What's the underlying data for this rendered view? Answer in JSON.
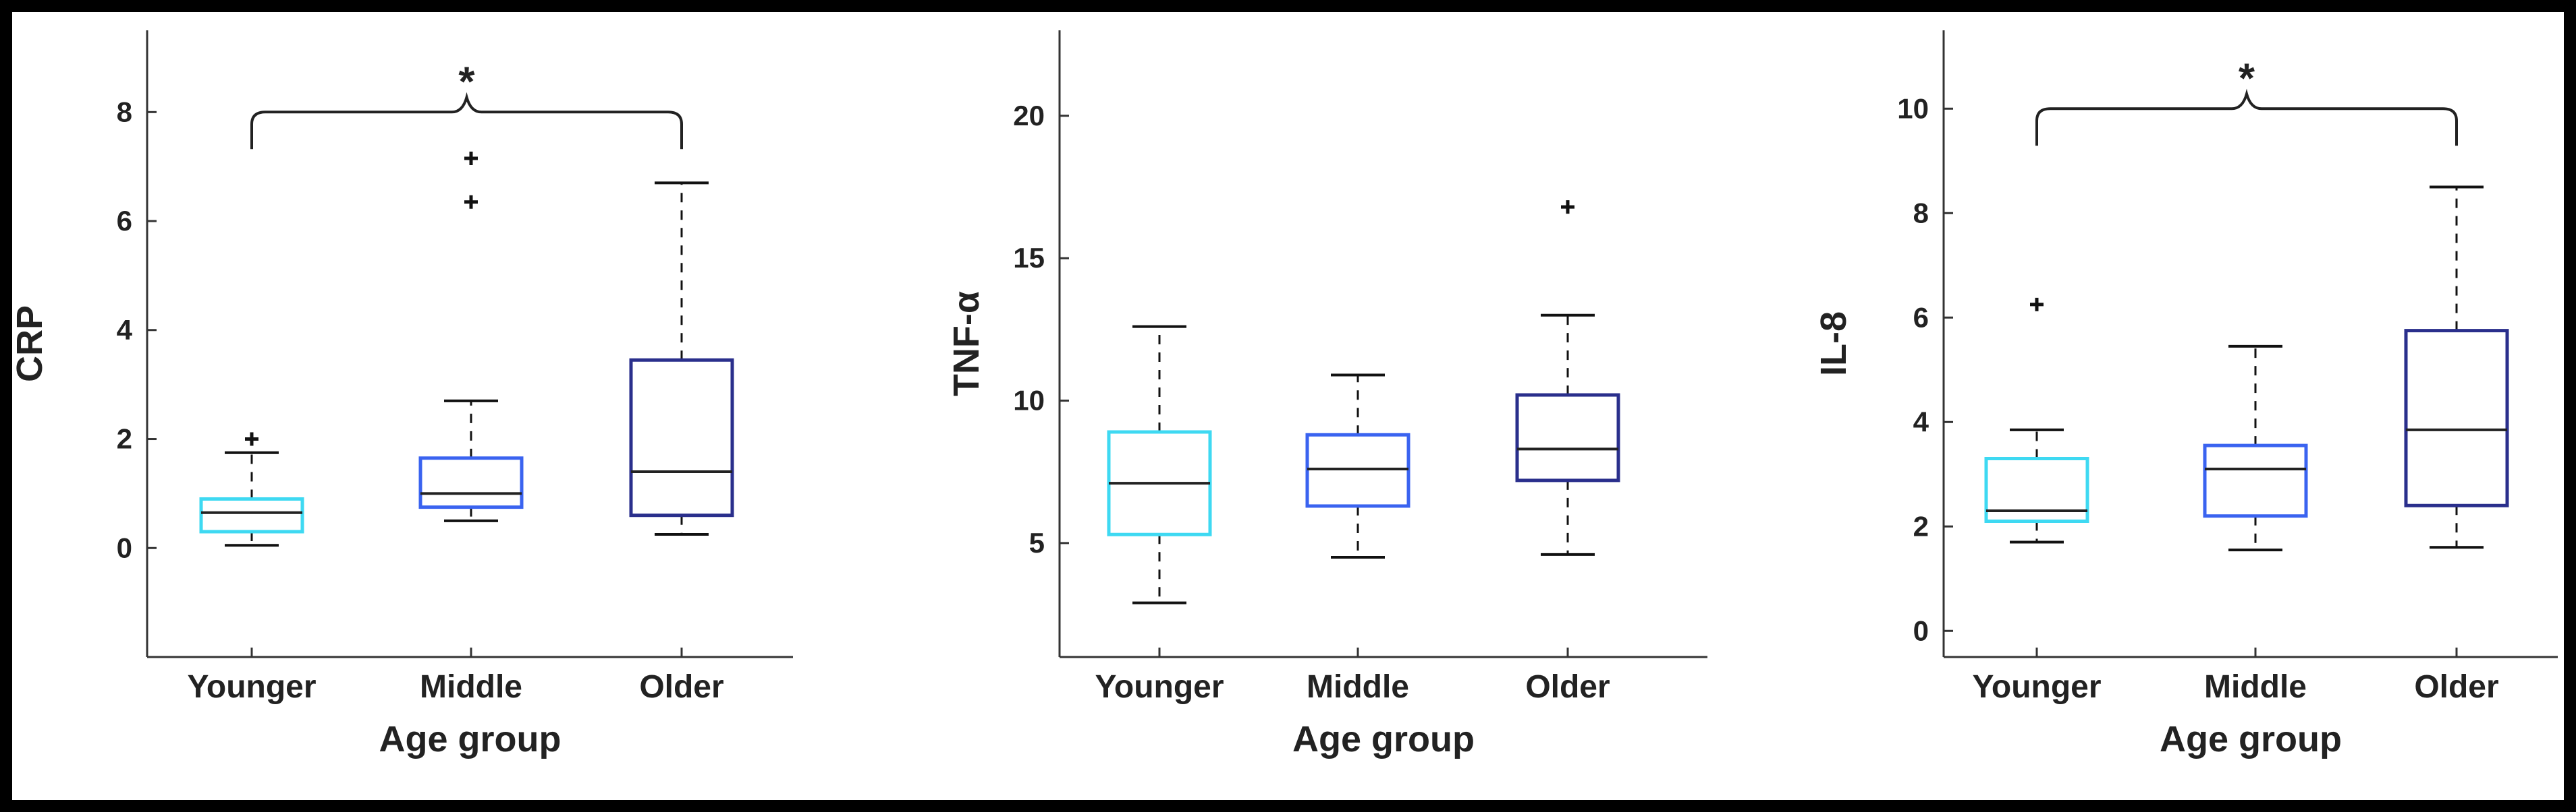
{
  "chart_data": [
    {
      "type": "box",
      "ylabel": "CRP",
      "xlabel": "Age group",
      "ylim": [
        -2,
        9.5
      ],
      "yticks": [
        0,
        2,
        4,
        6,
        8
      ],
      "grid": false,
      "categories": [
        "Younger",
        "Middle",
        "Older"
      ],
      "box_colors": [
        "#3ED9F2",
        "#3A63F0",
        "#2A2F8C"
      ],
      "boxes": [
        {
          "category": "Younger",
          "whisker_low": 0.05,
          "q1": 0.3,
          "median": 0.65,
          "q3": 0.9,
          "whisker_high": 1.75,
          "outliers": [
            2.0
          ]
        },
        {
          "category": "Middle",
          "whisker_low": 0.5,
          "q1": 0.75,
          "median": 1.0,
          "q3": 1.65,
          "whisker_high": 2.7,
          "outliers": [
            6.35,
            7.15
          ]
        },
        {
          "category": "Older",
          "whisker_low": 0.25,
          "q1": 0.6,
          "median": 1.4,
          "q3": 3.45,
          "whisker_high": 6.7,
          "outliers": []
        }
      ],
      "significance": {
        "from": "Younger",
        "to": "Older",
        "label": "*",
        "y": 8.0
      }
    },
    {
      "type": "box",
      "ylabel": "TNF-α",
      "xlabel": "Age group",
      "ylim": [
        1,
        23
      ],
      "yticks": [
        5,
        10,
        15,
        20
      ],
      "grid": false,
      "categories": [
        "Younger",
        "Middle",
        "Older"
      ],
      "box_colors": [
        "#3ED9F2",
        "#3A63F0",
        "#2A2F8C"
      ],
      "boxes": [
        {
          "category": "Younger",
          "whisker_low": 2.9,
          "q1": 5.3,
          "median": 7.1,
          "q3": 8.9,
          "whisker_high": 12.6,
          "outliers": []
        },
        {
          "category": "Middle",
          "whisker_low": 4.5,
          "q1": 6.3,
          "median": 7.6,
          "q3": 8.8,
          "whisker_high": 10.9,
          "outliers": []
        },
        {
          "category": "Older",
          "whisker_low": 4.6,
          "q1": 7.2,
          "median": 8.3,
          "q3": 10.2,
          "whisker_high": 13.0,
          "outliers": [
            16.8
          ]
        }
      ]
    },
    {
      "type": "box",
      "ylabel": "IL-8",
      "xlabel": "Age group",
      "ylim": [
        -0.5,
        11.5
      ],
      "yticks": [
        0,
        2,
        4,
        6,
        8,
        10
      ],
      "grid": false,
      "categories": [
        "Younger",
        "Middle",
        "Older"
      ],
      "box_colors": [
        "#3ED9F2",
        "#3A63F0",
        "#2A2F8C"
      ],
      "boxes": [
        {
          "category": "Younger",
          "whisker_low": 1.7,
          "q1": 2.1,
          "median": 2.3,
          "q3": 3.3,
          "whisker_high": 3.85,
          "outliers": [
            6.25
          ]
        },
        {
          "category": "Middle",
          "whisker_low": 1.55,
          "q1": 2.2,
          "median": 3.1,
          "q3": 3.55,
          "whisker_high": 5.45,
          "outliers": []
        },
        {
          "category": "Older",
          "whisker_low": 1.6,
          "q1": 2.4,
          "median": 3.85,
          "q3": 5.75,
          "whisker_high": 8.5,
          "outliers": []
        }
      ],
      "significance": {
        "from": "Younger",
        "to": "Older",
        "label": "*",
        "y": 10.0
      }
    }
  ]
}
